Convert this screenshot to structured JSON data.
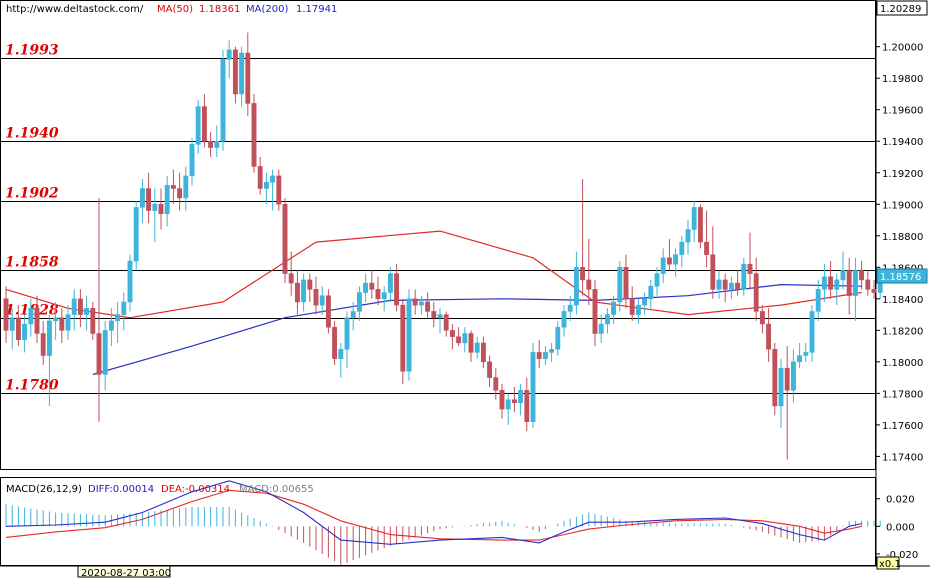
{
  "header": {
    "site": "http://www.deltastock.com/",
    "ma50_label": "MA(50)",
    "ma50_value": "1.18361",
    "ma200_label": "MA(200)",
    "ma200_value": "1.17941"
  },
  "colors": {
    "bull": "#3cb4dc",
    "bear": "#c0505a",
    "ma50": "#e62828",
    "ma200": "#2830c8",
    "level_text": "#e00000"
  },
  "price_axis": {
    "top_label": "1.20289",
    "current_label": "1.18576",
    "ticks": [
      "1.20000",
      "1.19800",
      "1.19600",
      "1.19400",
      "1.19200",
      "1.19000",
      "1.18800",
      "1.18600",
      "1.18400",
      "1.18200",
      "1.18000",
      "1.17800",
      "1.17600",
      "1.17400"
    ]
  },
  "levels": [
    "1.1993",
    "1.1940",
    "1.1902",
    "1.1858",
    "1.1828",
    "1.1780"
  ],
  "macd": {
    "title": "MACD(26,12,9)",
    "diff": "DIFF:0.00014",
    "dea": "DEA:-0.00314",
    "macd": "MACD:0.00655",
    "ticks": [
      "0.020",
      "0.000",
      "-0.020"
    ],
    "scale_label": "x0.1"
  },
  "footer": {
    "date": "2020-08-27 03:00"
  },
  "chart_data": {
    "type": "candlestick",
    "x": {
      "start_label": "2020-08-27 03:00"
    },
    "ylim": [
      1.1732,
      1.2029
    ],
    "levels": [
      1.1993,
      1.194,
      1.1902,
      1.1858,
      1.1828,
      1.178
    ],
    "ohlc": [
      [
        1.184,
        1.1848,
        1.1812,
        1.182
      ],
      [
        1.182,
        1.1834,
        1.1808,
        1.1828
      ],
      [
        1.1828,
        1.1836,
        1.181,
        1.1814
      ],
      [
        1.1814,
        1.183,
        1.1806,
        1.1824
      ],
      [
        1.1824,
        1.184,
        1.1816,
        1.1834
      ],
      [
        1.1834,
        1.1842,
        1.1812,
        1.1818
      ],
      [
        1.1818,
        1.1826,
        1.1798,
        1.1804
      ],
      [
        1.1804,
        1.183,
        1.1772,
        1.1826
      ],
      [
        1.1826,
        1.1838,
        1.1814,
        1.1828
      ],
      [
        1.1828,
        1.1834,
        1.1812,
        1.182
      ],
      [
        1.182,
        1.1836,
        1.1814,
        1.183
      ],
      [
        1.183,
        1.1846,
        1.182,
        1.184
      ],
      [
        1.184,
        1.1846,
        1.1822,
        1.183
      ],
      [
        1.183,
        1.1842,
        1.182,
        1.1834
      ],
      [
        1.1834,
        1.1838,
        1.1814,
        1.1818
      ],
      [
        1.1818,
        1.1904,
        1.1762,
        1.1792
      ],
      [
        1.1792,
        1.1826,
        1.1782,
        1.182
      ],
      [
        1.182,
        1.1834,
        1.181,
        1.1826
      ],
      [
        1.1826,
        1.1838,
        1.1812,
        1.183
      ],
      [
        1.183,
        1.1844,
        1.182,
        1.1838
      ],
      [
        1.1838,
        1.1868,
        1.1832,
        1.1864
      ],
      [
        1.1864,
        1.1902,
        1.1858,
        1.1898
      ],
      [
        1.1898,
        1.1916,
        1.1888,
        1.191
      ],
      [
        1.191,
        1.192,
        1.1888,
        1.1896
      ],
      [
        1.1896,
        1.191,
        1.1876,
        1.19
      ],
      [
        1.19,
        1.191,
        1.1884,
        1.1894
      ],
      [
        1.1894,
        1.1918,
        1.1886,
        1.1912
      ],
      [
        1.1912,
        1.1922,
        1.19,
        1.191
      ],
      [
        1.191,
        1.192,
        1.1896,
        1.1904
      ],
      [
        1.1904,
        1.1924,
        1.1896,
        1.1918
      ],
      [
        1.1918,
        1.1942,
        1.1912,
        1.1938
      ],
      [
        1.1938,
        1.1966,
        1.1932,
        1.1962
      ],
      [
        1.1962,
        1.197,
        1.1936,
        1.194
      ],
      [
        1.194,
        1.1946,
        1.193,
        1.1936
      ],
      [
        1.1936,
        1.195,
        1.193,
        1.194
      ],
      [
        1.194,
        1.1998,
        1.1934,
        1.1992
      ],
      [
        1.1992,
        1.2004,
        1.198,
        1.1998
      ],
      [
        1.1998,
        1.2,
        1.1964,
        1.197
      ],
      [
        1.197,
        1.2,
        1.1962,
        1.1996
      ],
      [
        1.1996,
        1.2009,
        1.1956,
        1.1964
      ],
      [
        1.1964,
        1.197,
        1.192,
        1.1924
      ],
      [
        1.1924,
        1.193,
        1.1906,
        1.191
      ],
      [
        1.191,
        1.192,
        1.19,
        1.1914
      ],
      [
        1.1914,
        1.1922,
        1.1896,
        1.1918
      ],
      [
        1.1918,
        1.1922,
        1.1896,
        1.19
      ],
      [
        1.19,
        1.1904,
        1.185,
        1.1856
      ],
      [
        1.1856,
        1.187,
        1.1842,
        1.185
      ],
      [
        1.185,
        1.1858,
        1.183,
        1.1838
      ],
      [
        1.1838,
        1.1856,
        1.1832,
        1.1852
      ],
      [
        1.1852,
        1.1856,
        1.1838,
        1.1846
      ],
      [
        1.1846,
        1.1854,
        1.183,
        1.1836
      ],
      [
        1.1836,
        1.1848,
        1.183,
        1.1842
      ],
      [
        1.1842,
        1.1846,
        1.1818,
        1.1822
      ],
      [
        1.1822,
        1.1826,
        1.1798,
        1.1802
      ],
      [
        1.1802,
        1.1812,
        1.179,
        1.1808
      ],
      [
        1.1808,
        1.1832,
        1.1796,
        1.1828
      ],
      [
        1.1828,
        1.1838,
        1.182,
        1.1832
      ],
      [
        1.1832,
        1.1848,
        1.1826,
        1.1844
      ],
      [
        1.1844,
        1.1856,
        1.1838,
        1.185
      ],
      [
        1.185,
        1.1858,
        1.184,
        1.1846
      ],
      [
        1.1846,
        1.1854,
        1.1836,
        1.184
      ],
      [
        1.184,
        1.1848,
        1.1832,
        1.1844
      ],
      [
        1.1844,
        1.186,
        1.1838,
        1.1856
      ],
      [
        1.1856,
        1.1862,
        1.1832,
        1.1836
      ],
      [
        1.1836,
        1.184,
        1.1786,
        1.1794
      ],
      [
        1.1794,
        1.1846,
        1.1788,
        1.184
      ],
      [
        1.184,
        1.1846,
        1.183,
        1.1836
      ],
      [
        1.1836,
        1.1842,
        1.183,
        1.1838
      ],
      [
        1.1838,
        1.1844,
        1.1828,
        1.1832
      ],
      [
        1.1832,
        1.1838,
        1.1822,
        1.1828
      ],
      [
        1.1828,
        1.1834,
        1.1818,
        1.183
      ],
      [
        1.183,
        1.1832,
        1.1816,
        1.182
      ],
      [
        1.182,
        1.1824,
        1.1808,
        1.1816
      ],
      [
        1.1816,
        1.1822,
        1.181,
        1.1812
      ],
      [
        1.1812,
        1.1822,
        1.1806,
        1.1818
      ],
      [
        1.1818,
        1.182,
        1.18,
        1.1806
      ],
      [
        1.1806,
        1.1816,
        1.1802,
        1.1812
      ],
      [
        1.1812,
        1.1816,
        1.1796,
        1.18
      ],
      [
        1.18,
        1.1804,
        1.1784,
        1.179
      ],
      [
        1.179,
        1.1796,
        1.1776,
        1.1782
      ],
      [
        1.1782,
        1.1786,
        1.1764,
        1.177
      ],
      [
        1.177,
        1.178,
        1.176,
        1.1776
      ],
      [
        1.1776,
        1.1784,
        1.1768,
        1.1774
      ],
      [
        1.1774,
        1.1786,
        1.1766,
        1.1782
      ],
      [
        1.1782,
        1.179,
        1.1756,
        1.1762
      ],
      [
        1.1762,
        1.1812,
        1.1758,
        1.1806
      ],
      [
        1.1806,
        1.1814,
        1.1796,
        1.1802
      ],
      [
        1.1802,
        1.181,
        1.1798,
        1.1806
      ],
      [
        1.1806,
        1.1812,
        1.18,
        1.1808
      ],
      [
        1.1808,
        1.1826,
        1.1804,
        1.1822
      ],
      [
        1.1822,
        1.1836,
        1.1816,
        1.1832
      ],
      [
        1.1832,
        1.1842,
        1.1826,
        1.1836
      ],
      [
        1.1836,
        1.187,
        1.183,
        1.186
      ],
      [
        1.186,
        1.1916,
        1.1842,
        1.1852
      ],
      [
        1.1852,
        1.1878,
        1.1836,
        1.1846
      ],
      [
        1.1846,
        1.1852,
        1.181,
        1.1818
      ],
      [
        1.1818,
        1.183,
        1.1812,
        1.1824
      ],
      [
        1.1824,
        1.1834,
        1.1818,
        1.183
      ],
      [
        1.183,
        1.1842,
        1.1824,
        1.1838
      ],
      [
        1.1838,
        1.1864,
        1.1832,
        1.186
      ],
      [
        1.186,
        1.1868,
        1.1834,
        1.184
      ],
      [
        1.184,
        1.1848,
        1.1826,
        1.183
      ],
      [
        1.183,
        1.184,
        1.1824,
        1.1836
      ],
      [
        1.1836,
        1.1844,
        1.183,
        1.184
      ],
      [
        1.184,
        1.1852,
        1.1834,
        1.1848
      ],
      [
        1.1848,
        1.186,
        1.1842,
        1.1856
      ],
      [
        1.1856,
        1.1872,
        1.185,
        1.1866
      ],
      [
        1.1866,
        1.1878,
        1.1858,
        1.1862
      ],
      [
        1.1862,
        1.1872,
        1.1854,
        1.1868
      ],
      [
        1.1868,
        1.188,
        1.186,
        1.1876
      ],
      [
        1.1876,
        1.189,
        1.1868,
        1.1884
      ],
      [
        1.1884,
        1.1902,
        1.1876,
        1.1898
      ],
      [
        1.1898,
        1.19,
        1.1872,
        1.1876
      ],
      [
        1.1876,
        1.1896,
        1.186,
        1.1868
      ],
      [
        1.1868,
        1.1886,
        1.184,
        1.1846
      ],
      [
        1.1846,
        1.1858,
        1.184,
        1.1852
      ],
      [
        1.1852,
        1.1856,
        1.1838,
        1.1846
      ],
      [
        1.1846,
        1.1854,
        1.184,
        1.185
      ],
      [
        1.185,
        1.1858,
        1.1842,
        1.1846
      ],
      [
        1.1846,
        1.1866,
        1.1842,
        1.1862
      ],
      [
        1.1862,
        1.1882,
        1.1846,
        1.1856
      ],
      [
        1.1856,
        1.1866,
        1.1826,
        1.1832
      ],
      [
        1.1832,
        1.1836,
        1.1818,
        1.1824
      ],
      [
        1.1824,
        1.1834,
        1.18,
        1.1808
      ],
      [
        1.1808,
        1.1812,
        1.1766,
        1.1772
      ],
      [
        1.1772,
        1.1802,
        1.1758,
        1.1796
      ],
      [
        1.1796,
        1.181,
        1.1738,
        1.1782
      ],
      [
        1.1782,
        1.1808,
        1.1774,
        1.18
      ],
      [
        1.18,
        1.1812,
        1.1796,
        1.1804
      ],
      [
        1.1804,
        1.1812,
        1.18,
        1.1806
      ],
      [
        1.1806,
        1.1836,
        1.18,
        1.1832
      ],
      [
        1.1832,
        1.1852,
        1.1826,
        1.1846
      ],
      [
        1.1846,
        1.1862,
        1.1838,
        1.1854
      ],
      [
        1.1854,
        1.1864,
        1.184,
        1.1846
      ],
      [
        1.1846,
        1.1856,
        1.1836,
        1.1852
      ],
      [
        1.1852,
        1.187,
        1.1846,
        1.1858
      ],
      [
        1.1858,
        1.1866,
        1.183,
        1.1842
      ],
      [
        1.1842,
        1.1866,
        1.1826,
        1.1858
      ],
      [
        1.1858,
        1.1864,
        1.1846,
        1.1852
      ],
      [
        1.1852,
        1.1858,
        1.1842,
        1.1846
      ],
      [
        1.1846,
        1.1852,
        1.184,
        1.1844
      ],
      [
        1.1844,
        1.186,
        1.184,
        1.1857
      ]
    ],
    "ma50": [
      [
        0,
        1.1846
      ],
      [
        10,
        1.1834
      ],
      [
        20,
        1.1828
      ],
      [
        35,
        1.1838
      ],
      [
        50,
        1.1876
      ],
      [
        70,
        1.1883
      ],
      [
        85,
        1.1866
      ],
      [
        95,
        1.1838
      ],
      [
        110,
        1.183
      ],
      [
        125,
        1.1836
      ],
      [
        138,
        1.1844
      ]
    ],
    "ma200": [
      [
        14,
        1.1792
      ],
      [
        30,
        1.181
      ],
      [
        45,
        1.1828
      ],
      [
        62,
        1.1839
      ],
      [
        80,
        1.184
      ],
      [
        95,
        1.1839
      ],
      [
        110,
        1.1842
      ],
      [
        125,
        1.1849
      ],
      [
        138,
        1.1848
      ]
    ],
    "macd_panel": {
      "ylim": [
        -0.028,
        0.035
      ],
      "diff": [
        [
          0,
          0.0
        ],
        [
          8,
          0.001
        ],
        [
          16,
          0.003
        ],
        [
          22,
          0.01
        ],
        [
          30,
          0.025
        ],
        [
          36,
          0.033
        ],
        [
          42,
          0.025
        ],
        [
          48,
          0.01
        ],
        [
          54,
          -0.01
        ],
        [
          62,
          -0.013
        ],
        [
          70,
          -0.01
        ],
        [
          80,
          -0.008
        ],
        [
          86,
          -0.012
        ],
        [
          90,
          -0.004
        ],
        [
          94,
          0.003
        ],
        [
          100,
          0.003
        ],
        [
          108,
          0.005
        ],
        [
          116,
          0.006
        ],
        [
          122,
          0.002
        ],
        [
          128,
          -0.006
        ],
        [
          132,
          -0.01
        ],
        [
          136,
          0.0
        ],
        [
          138,
          0.002
        ]
      ],
      "dea": [
        [
          0,
          -0.008
        ],
        [
          8,
          -0.004
        ],
        [
          16,
          -0.001
        ],
        [
          22,
          0.005
        ],
        [
          30,
          0.018
        ],
        [
          36,
          0.026
        ],
        [
          42,
          0.024
        ],
        [
          48,
          0.016
        ],
        [
          54,
          0.004
        ],
        [
          62,
          -0.006
        ],
        [
          70,
          -0.009
        ],
        [
          80,
          -0.01
        ],
        [
          86,
          -0.01
        ],
        [
          90,
          -0.006
        ],
        [
          94,
          -0.002
        ],
        [
          100,
          0.001
        ],
        [
          108,
          0.004
        ],
        [
          116,
          0.005
        ],
        [
          122,
          0.004
        ],
        [
          128,
          0.0
        ],
        [
          132,
          -0.005
        ],
        [
          136,
          -0.002
        ],
        [
          138,
          0.0
        ]
      ]
    }
  }
}
